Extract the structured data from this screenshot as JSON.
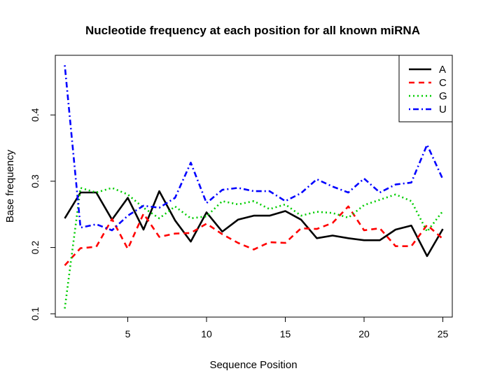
{
  "chart_data": {
    "type": "line",
    "title": "Nucleotide frequency at each position for all known miRNA",
    "xlabel": "Sequence Position",
    "ylabel": "Base frequency",
    "xlim": [
      0.4,
      25.6
    ],
    "ylim": [
      0.095,
      0.49
    ],
    "xticks": [
      5,
      10,
      15,
      20,
      25
    ],
    "yticks": [
      0.1,
      0.2,
      0.3,
      0.4
    ],
    "x": [
      1,
      2,
      3,
      4,
      5,
      6,
      7,
      8,
      9,
      10,
      11,
      12,
      13,
      14,
      15,
      16,
      17,
      18,
      19,
      20,
      21,
      22,
      23,
      24,
      25
    ],
    "legend_position": "top-right",
    "series": [
      {
        "name": "A",
        "color": "#000000",
        "dash": "solid",
        "values": [
          0.244,
          0.283,
          0.283,
          0.242,
          0.275,
          0.227,
          0.285,
          0.241,
          0.209,
          0.253,
          0.224,
          0.242,
          0.248,
          0.248,
          0.255,
          0.242,
          0.214,
          0.218,
          0.214,
          0.211,
          0.211,
          0.227,
          0.233,
          0.187,
          0.228
        ]
      },
      {
        "name": "C",
        "color": "#ff0000",
        "dash": "dashed",
        "values": [
          0.173,
          0.199,
          0.201,
          0.243,
          0.198,
          0.251,
          0.216,
          0.221,
          0.222,
          0.236,
          0.22,
          0.207,
          0.197,
          0.208,
          0.207,
          0.229,
          0.228,
          0.237,
          0.262,
          0.226,
          0.229,
          0.202,
          0.202,
          0.234,
          0.213
        ]
      },
      {
        "name": "G",
        "color": "#00cd00",
        "dash": "dotted",
        "values": [
          0.108,
          0.29,
          0.283,
          0.29,
          0.28,
          0.26,
          0.244,
          0.262,
          0.244,
          0.247,
          0.27,
          0.265,
          0.27,
          0.258,
          0.265,
          0.248,
          0.254,
          0.252,
          0.245,
          0.264,
          0.272,
          0.28,
          0.27,
          0.224,
          0.255
        ]
      },
      {
        "name": "U",
        "color": "#0000ff",
        "dash": "dotdash",
        "values": [
          0.475,
          0.23,
          0.235,
          0.226,
          0.248,
          0.263,
          0.26,
          0.275,
          0.328,
          0.267,
          0.287,
          0.29,
          0.285,
          0.285,
          0.27,
          0.282,
          0.303,
          0.292,
          0.283,
          0.304,
          0.283,
          0.295,
          0.298,
          0.355,
          0.303
        ]
      }
    ]
  }
}
